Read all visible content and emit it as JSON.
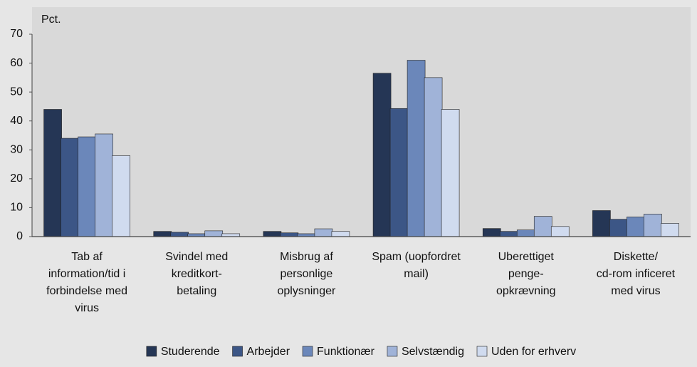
{
  "chart_data": {
    "type": "bar",
    "ylabel": "Pct.",
    "categories": [
      [
        "Tab af",
        "information/tid i",
        "forbindelse med",
        "virus"
      ],
      [
        "Svindel med",
        "kreditkort-",
        "betaling"
      ],
      [
        "Misbrug af",
        "personlige",
        "oplysninger"
      ],
      [
        "Spam (uopfordret",
        "mail)"
      ],
      [
        "Uberettiget",
        "penge-",
        "opkrævning"
      ],
      [
        "Diskette/",
        "cd-rom inficeret",
        "med virus"
      ]
    ],
    "series": [
      {
        "name": "Studerende",
        "color": "#253655",
        "values": [
          44,
          1.8,
          1.8,
          56.5,
          2.8,
          9
        ]
      },
      {
        "name": "Arbejder",
        "color": "#3c5686",
        "values": [
          34,
          1.5,
          1.3,
          44.3,
          1.8,
          6
        ]
      },
      {
        "name": "Funktionær",
        "color": "#6b87ba",
        "values": [
          34.5,
          1,
          1,
          61,
          2.3,
          6.8
        ]
      },
      {
        "name": "Selvstændig",
        "color": "#a0b3d8",
        "values": [
          35.5,
          2,
          2.7,
          55,
          7,
          7.8
        ]
      },
      {
        "name": "Uden for erhverv",
        "color": "#d0dbef",
        "values": [
          28,
          1,
          1.8,
          44,
          3.5,
          4.6
        ]
      }
    ],
    "ylim": [
      0,
      70
    ],
    "yticks": [
      0,
      10,
      20,
      30,
      40,
      50,
      60,
      70
    ],
    "grid": false,
    "legend": "bottom"
  }
}
